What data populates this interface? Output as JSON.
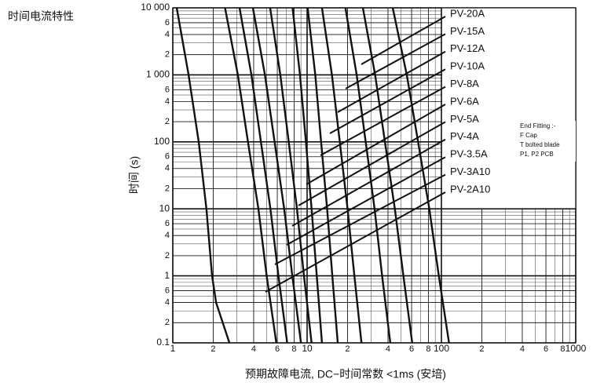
{
  "chart_data": {
    "type": "line",
    "title": "时间电流特性",
    "x_label": "预期故障电流, DC−时间常数 <1ms (安培)",
    "y_label": "时间 (s)",
    "xlog": true,
    "ylog": true,
    "grid": true,
    "minor_grid": true,
    "xlim": [
      1,
      1000
    ],
    "ylim": [
      0.1,
      10000
    ],
    "xticks": [
      1,
      2,
      4,
      6,
      8,
      10,
      {
        "value": 20,
        "label": "2"
      },
      {
        "value": 40,
        "label": "4"
      },
      {
        "value": 60,
        "label": "6"
      },
      {
        "value": 80,
        "label": "8"
      },
      100,
      {
        "value": 200,
        "label": "2"
      },
      {
        "value": 400,
        "label": "4"
      },
      {
        "value": 600,
        "label": "6"
      },
      {
        "value": 800,
        "label": "8"
      },
      1000
    ],
    "yticks": [
      0.1,
      {
        "value": 0.2,
        "label": "2"
      },
      {
        "value": 0.4,
        "label": "4"
      },
      {
        "value": 0.6,
        "label": "6"
      },
      1,
      2,
      4,
      6,
      10,
      {
        "value": 20,
        "label": "2"
      },
      {
        "value": 40,
        "label": "4"
      },
      {
        "value": 60,
        "label": "6"
      },
      100,
      {
        "value": 200,
        "label": "2"
      },
      {
        "value": 400,
        "label": "4"
      },
      {
        "value": 600,
        "label": "6"
      },
      {
        "value": 1000,
        "label": "1 000"
      },
      {
        "value": 2000,
        "label": "2"
      },
      {
        "value": 4000,
        "label": "4"
      },
      {
        "value": 6000,
        "label": "6"
      },
      {
        "value": 10000,
        "label": "10 000"
      }
    ],
    "color": "#111111",
    "note": [
      "End Fitting :-",
      "F Cap",
      "T bolted blade",
      "P1, P2 PCB"
    ],
    "series": [
      {
        "name": "PV-20A",
        "x": [
          43.4,
          55.2,
          67,
          81.3,
          95.7,
          114
        ],
        "values": [
          10000,
          1000,
          100,
          10,
          1,
          0.1
        ]
      },
      {
        "name": "PV-15A",
        "x": [
          26,
          32.1,
          38,
          45,
          52.1,
          60.6
        ],
        "values": [
          10000,
          1000,
          100,
          10,
          1,
          0.1
        ]
      },
      {
        "name": "PV-12A",
        "x": [
          19.3,
          23.4,
          27.3,
          31.8,
          36.2,
          41.6
        ],
        "values": [
          10000,
          1000,
          100,
          10,
          1,
          0.1
        ]
      },
      {
        "name": "PV-10A",
        "x": [
          12.9,
          15.3,
          17.5,
          20,
          22.5,
          25.4
        ],
        "values": [
          10000,
          1000,
          100,
          10,
          1,
          0.1
        ]
      },
      {
        "name": "PV-8A",
        "x": [
          10.1,
          11.5,
          12.7,
          14.1,
          15.4,
          16.9
        ],
        "values": [
          10000,
          1000,
          100,
          10,
          1,
          0.1
        ]
      },
      {
        "name": "PV-6A",
        "x": [
          7.8,
          8.85,
          9.8,
          10.8,
          11.8,
          12.9
        ],
        "values": [
          10000,
          1000,
          100,
          10,
          1,
          0.1
        ]
      },
      {
        "name": "PV-5A",
        "x": [
          5.3,
          6.32,
          7.3,
          8.41,
          9.48,
          10.8
        ],
        "values": [
          10000,
          1000,
          100,
          10,
          1,
          0.1
        ]
      },
      {
        "name": "PV-4A",
        "x": [
          3.95,
          4.85,
          5.73,
          6.75,
          7.76,
          9.0
        ],
        "values": [
          10000,
          1000,
          100,
          10,
          1,
          0.1
        ]
      },
      {
        "name": "PV-3.5A",
        "x": [
          3.14,
          3.85,
          4.53,
          5.33,
          6.12,
          7.1
        ],
        "values": [
          10000,
          1000,
          100,
          10,
          1,
          0.1
        ]
      },
      {
        "name": "PV-3A10",
        "x": [
          2.45,
          3.05,
          3.63,
          4.34,
          5.0,
          5.9
        ],
        "values": [
          10000,
          1000,
          100,
          10,
          1,
          0.1
        ]
      },
      {
        "name": "PV-2A10",
        "x": [
          1.07,
          1.31,
          1.56,
          1.78,
          1.96,
          2.1,
          2.64
        ],
        "values": [
          10000,
          1000,
          100,
          10,
          1,
          0.4,
          0.1
        ]
      }
    ]
  }
}
